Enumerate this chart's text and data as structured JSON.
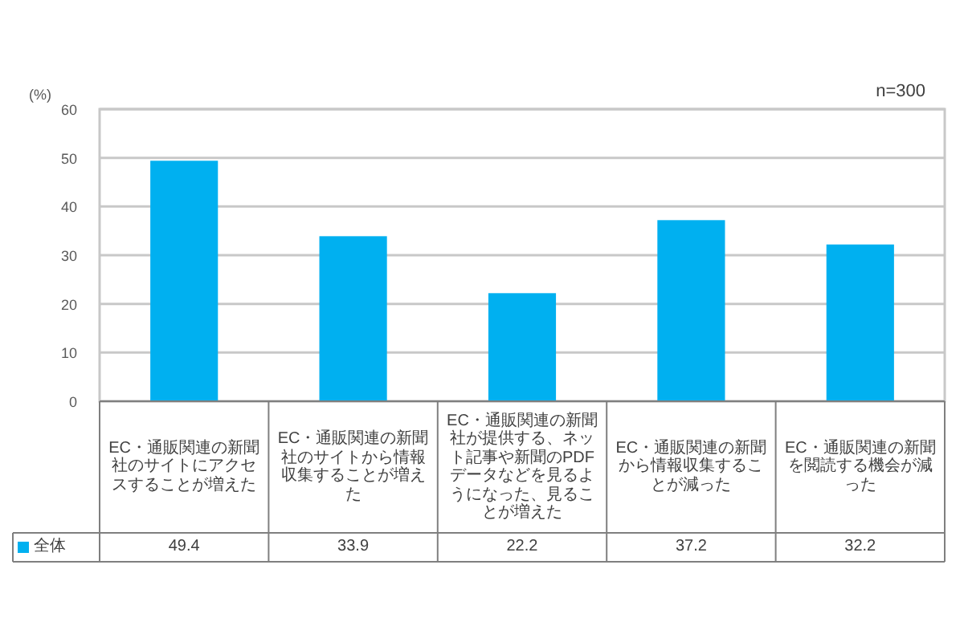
{
  "chart_data": {
    "type": "bar",
    "ylabel": "(%)",
    "annotations": [
      "n=300"
    ],
    "categories": [
      "EC・通販関連の新聞社のサイトにアクセスすることが増えた",
      "EC・通販関連の新聞社のサイトから情報収集することが増えた",
      "EC・通販関連の新聞社が提供する、ネット記事や新聞のPDFデータなどを見るようになった、見ることが増えた",
      "EC・通販関連の新聞から情報収集することが減った",
      "EC・通販関連の新聞を閲読する機会が減った"
    ],
    "series": [
      {
        "name": "全体",
        "color": "#00b0f0",
        "values": [
          49.4,
          33.9,
          22.2,
          37.2,
          32.2
        ]
      }
    ],
    "ylim": [
      0,
      60
    ],
    "yticks": [
      0,
      10,
      20,
      30,
      40,
      50,
      60
    ],
    "grid": "y",
    "data_labels": true,
    "legend": "bottom left"
  }
}
